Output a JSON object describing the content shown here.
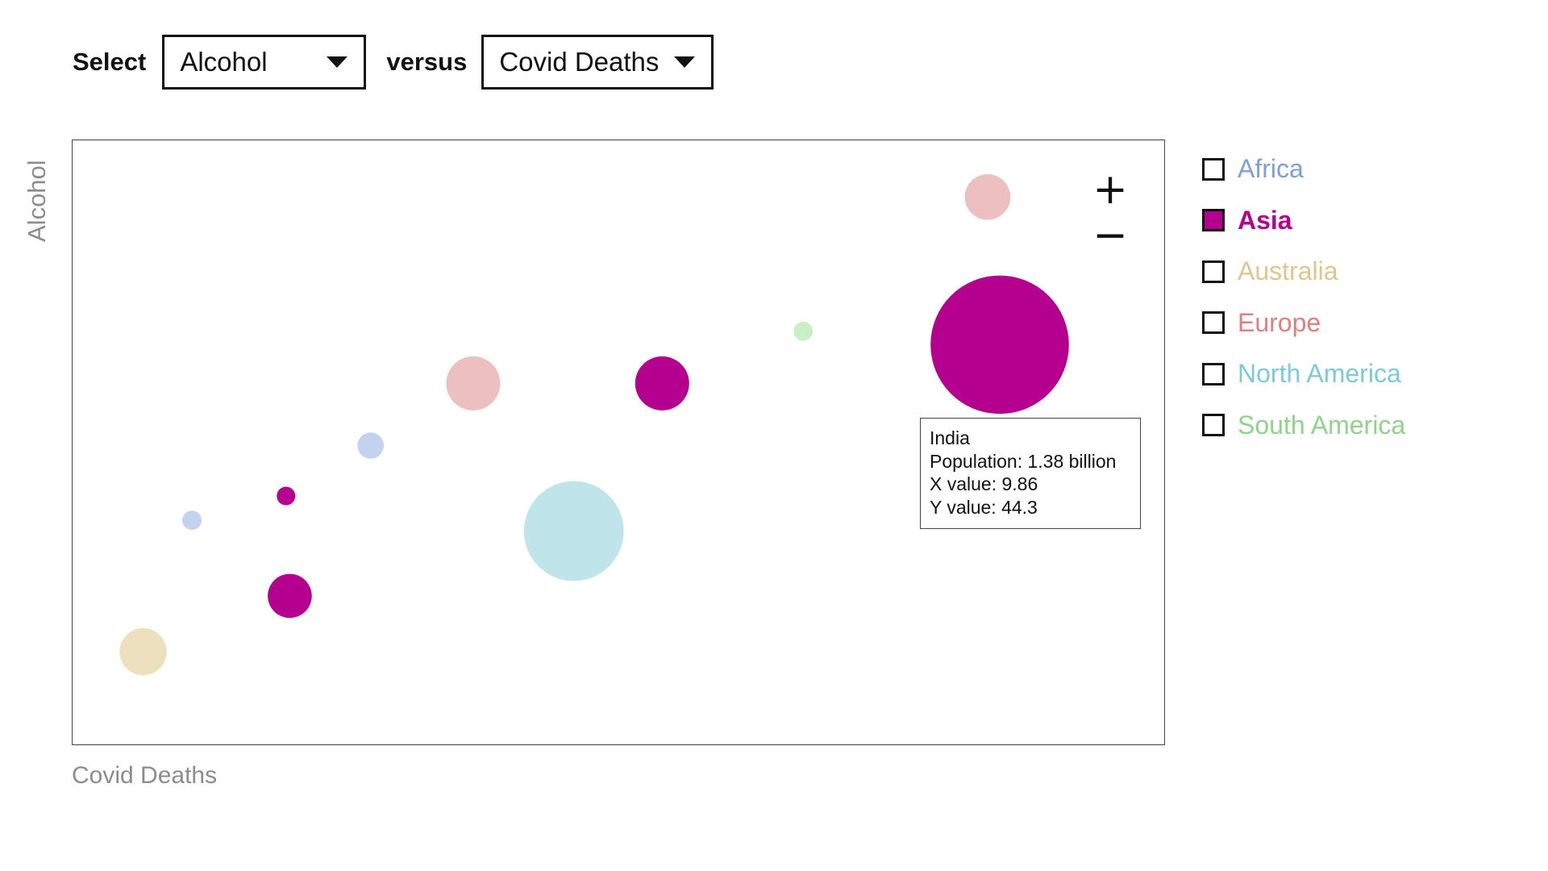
{
  "controls": {
    "select_label": "Select",
    "versus_label": "versus",
    "y_select_value": "Alcohol",
    "x_select_value": "Covid Deaths"
  },
  "zoom": {
    "in_symbol": "+",
    "out_symbol": "−"
  },
  "tooltip": {
    "country": "India",
    "population": "Population: 1.38 billion",
    "x_value": "X value: 9.86",
    "y_value": "Y value: 44.3"
  },
  "legend": [
    {
      "label": "Africa",
      "color": "#7ea0d6",
      "checked": false
    },
    {
      "label": "Asia",
      "color": "#b5008f",
      "checked": true
    },
    {
      "label": "Australia",
      "color": "#e0c68d",
      "checked": false
    },
    {
      "label": "Europe",
      "color": "#e07f7f",
      "checked": false
    },
    {
      "label": "North America",
      "color": "#7ccbd9",
      "checked": false
    },
    {
      "label": "South America",
      "color": "#8fd48a",
      "checked": false
    }
  ],
  "chart_data": {
    "type": "scatter",
    "xlabel": "Covid Deaths",
    "ylabel": "Alcohol",
    "xlim": [
      0,
      11.6
    ],
    "ylim": [
      0,
      67
    ],
    "continent_colors": {
      "Africa": "#c3d3ef",
      "Asia": "#b5008f",
      "Australia": "#ede0bf",
      "Europe": "#ecc0c0",
      "North America": "#bfe5eb",
      "South America": "#c9efc5"
    },
    "points": [
      {
        "continent": "Australia",
        "x": 0.75,
        "y": 10.2,
        "size": 0.16
      },
      {
        "continent": "Africa",
        "x": 1.27,
        "y": 24.8,
        "size": 0.027
      },
      {
        "continent": "Asia",
        "x": 2.27,
        "y": 27.5,
        "size": 0.025
      },
      {
        "continent": "Asia",
        "x": 2.31,
        "y": 16.4,
        "size": 0.14
      },
      {
        "continent": "Africa",
        "x": 3.17,
        "y": 33.1,
        "size": 0.05
      },
      {
        "continent": "Europe",
        "x": 4.26,
        "y": 40.0,
        "size": 0.21
      },
      {
        "continent": "North America",
        "x": 5.33,
        "y": 23.6,
        "size": 0.72
      },
      {
        "continent": "Asia",
        "x": 6.27,
        "y": 40.0,
        "size": 0.21
      },
      {
        "continent": "South America",
        "x": 7.77,
        "y": 45.8,
        "size": 0.026
      },
      {
        "continent": "Asia",
        "x": 9.86,
        "y": 44.3,
        "size": 1.38,
        "label": "India"
      },
      {
        "continent": "Europe",
        "x": 9.73,
        "y": 60.7,
        "size": 0.15
      }
    ]
  }
}
